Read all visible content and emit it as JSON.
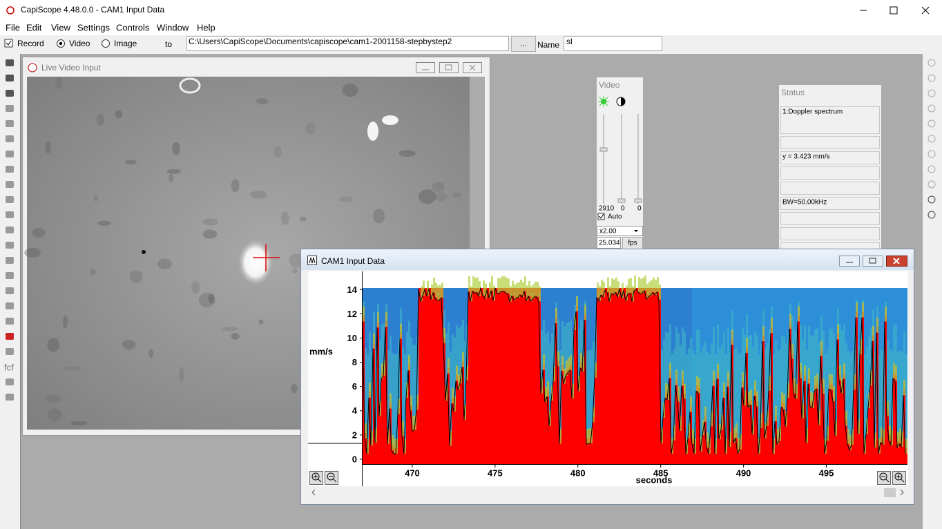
{
  "window": {
    "title": "CapiScope 4.48.0.0 - CAM1 Input Data"
  },
  "menu": [
    "File",
    "Edit",
    "View",
    "Settings",
    "Controls",
    "Window",
    "Help"
  ],
  "toolbar": {
    "record": "Record",
    "video": "Video",
    "image": "Image",
    "to": "to",
    "path": "C:\\Users\\CapiScope\\Documents\\capiscope\\cam1-2001158-stepbystep2",
    "browse": "...",
    "name_label": "Name",
    "name_value": "sl"
  },
  "side_toolbar": {
    "label": "fcf"
  },
  "live_video": {
    "title": "Live Video Input"
  },
  "video_panel": {
    "title": "Video",
    "slider_values": [
      "2910",
      "0",
      "0"
    ],
    "auto": "Auto",
    "zoom": "x2.00",
    "fps_value": "25.034",
    "fps_button": "fps"
  },
  "status_panel": {
    "title": "Status",
    "mode": "1:Doppler spectrum",
    "cursor": "y = 3.423 mm/s",
    "bandwidth": "BW=50.00kHz"
  },
  "chart_data": {
    "type": "spectrogram",
    "title": "CAM1 Input Data",
    "y_label": "mm/s",
    "x_label": "seconds",
    "xlim": [
      467,
      499.9
    ],
    "ylim": [
      -0.4,
      15.5
    ],
    "xticks": [
      470,
      475,
      480,
      485,
      490,
      495
    ],
    "yticks": [
      0,
      2,
      4,
      6,
      8,
      10,
      12,
      14
    ]
  }
}
